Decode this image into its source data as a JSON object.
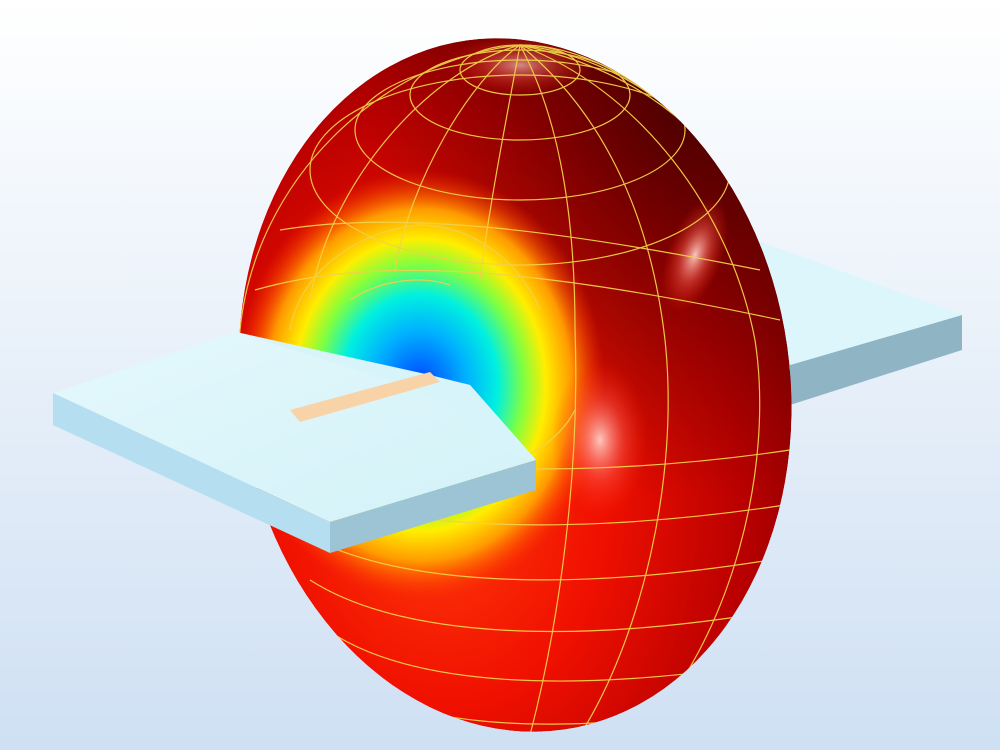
{
  "scene": {
    "kind": "3d-far-field-radiation-pattern",
    "objects": [
      "background",
      "substrate-board",
      "microstrip-trace",
      "radiation-torus",
      "mesh-grid"
    ]
  },
  "colors": {
    "background_top": "#ffffff",
    "background_bottom": "#cfe0f3",
    "board_top": "#dcf6fb",
    "board_side_front": "#b5def0",
    "board_side_dark": "#8fb4c3",
    "trace": "#f8d3a8",
    "torus_dark": "#5a0000",
    "torus_mid": "#c40000",
    "torus_bright": "#ff1a00",
    "torus_orange": "#ff8a00",
    "torus_yellow": "#ffee00",
    "torus_green": "#39ff8a",
    "torus_cyan": "#00e8ff",
    "torus_blue": "#0070ff",
    "grid_line": "#f2d24a"
  }
}
